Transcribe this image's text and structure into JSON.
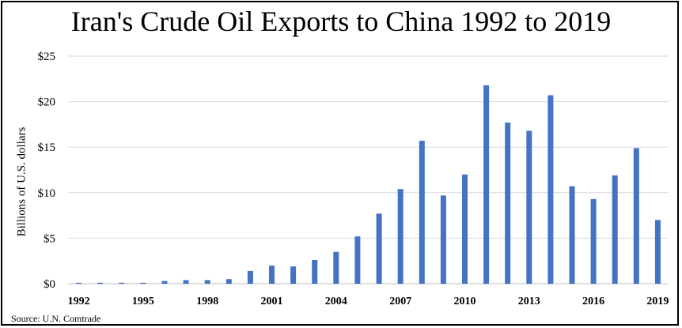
{
  "chart_data": {
    "type": "bar",
    "title": "Iran's Crude Oil Exports to China 1992 to 2019",
    "ylabel": "Billions of U.S. dollars",
    "xlabel": "",
    "source": "Source: U.N. Comtrade",
    "color": "#4472C4",
    "grid": true,
    "ylim": [
      0,
      25
    ],
    "y_ticks": [
      "$0",
      "$5",
      "$10",
      "$15",
      "$20",
      "$25"
    ],
    "y_tick_values": [
      0,
      5,
      10,
      15,
      20,
      25
    ],
    "x_tick_labels": [
      "1992",
      "1995",
      "1998",
      "2001",
      "2004",
      "2007",
      "2010",
      "2013",
      "2016",
      "2019"
    ],
    "categories": [
      "1992",
      "1993",
      "1994",
      "1995",
      "1996",
      "1997",
      "1998",
      "1999",
      "2000",
      "2001",
      "2002",
      "2003",
      "2004",
      "2005",
      "2006",
      "2007",
      "2008",
      "2009",
      "2010",
      "2011",
      "2012",
      "2013",
      "2014",
      "2015",
      "2016",
      "2017",
      "2018",
      "2019"
    ],
    "values": [
      0.1,
      0.1,
      0.1,
      0.1,
      0.3,
      0.4,
      0.4,
      0.5,
      1.4,
      2.0,
      1.9,
      2.6,
      3.5,
      5.2,
      7.7,
      10.4,
      15.7,
      9.7,
      12.0,
      21.8,
      17.7,
      16.8,
      20.7,
      10.7,
      9.3,
      11.9,
      14.9,
      7.0
    ]
  }
}
